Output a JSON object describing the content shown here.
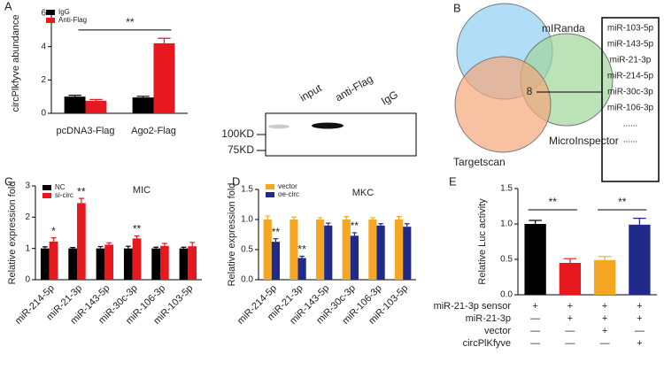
{
  "chart_data": [
    {
      "type": "bar",
      "panel": "A",
      "ylabel": "circPlkfyve  abundance",
      "categories": [
        "pcDNA3-Flag",
        "Ago2-Flag"
      ],
      "series": [
        {
          "name": "IgG",
          "color": "#000000",
          "values": [
            1.0,
            0.95
          ],
          "errors": [
            0.08,
            0.07
          ]
        },
        {
          "name": "Anti-Flag",
          "color": "#e8181f",
          "values": [
            0.75,
            4.2
          ],
          "errors": [
            0.08,
            0.3
          ]
        }
      ],
      "ylim": [
        0,
        6
      ],
      "yticks": [
        0,
        2,
        4,
        6
      ],
      "annotations": [
        "**"
      ]
    },
    {
      "type": "bar",
      "panel": "C",
      "title": "MIC",
      "ylabel": "Relative  expression fold",
      "categories": [
        "miR-214-5p",
        "miR-21-3p",
        "miR-143-5p",
        "miR-30c-3p",
        "miR-106-3p",
        "miR-103-5p"
      ],
      "series": [
        {
          "name": "NC",
          "color": "#000000",
          "values": [
            1.0,
            1.0,
            1.0,
            1.0,
            1.0,
            1.0
          ],
          "errors": [
            0.05,
            0.03,
            0.06,
            0.07,
            0.04,
            0.04
          ]
        },
        {
          "name": "si-circ",
          "color": "#e8181f",
          "values": [
            1.22,
            2.45,
            1.12,
            1.32,
            1.08,
            1.07
          ],
          "errors": [
            0.12,
            0.15,
            0.06,
            0.08,
            0.08,
            0.12
          ],
          "significance": [
            "*",
            "**",
            null,
            "**",
            null,
            null
          ]
        }
      ],
      "ylim": [
        0,
        3
      ],
      "yticks": [
        0,
        1,
        2,
        3
      ]
    },
    {
      "type": "bar",
      "panel": "D",
      "title": "MKC",
      "ylabel": "Relative  expression fold",
      "categories": [
        "miR-214-5p",
        "miR-21-3p",
        "miR-143-5p",
        "miR-30c-3p",
        "miR-106-3p",
        "miR-103-5p"
      ],
      "series": [
        {
          "name": "vector",
          "color": "#f5a623",
          "values": [
            1.0,
            1.0,
            1.0,
            1.0,
            1.0,
            1.0
          ],
          "errors": [
            0.06,
            0.04,
            0.03,
            0.05,
            0.03,
            0.05
          ]
        },
        {
          "name": "oe-circ",
          "color": "#1f2a8a",
          "values": [
            0.63,
            0.36,
            0.9,
            0.73,
            0.9,
            0.88
          ],
          "errors": [
            0.05,
            0.03,
            0.04,
            0.05,
            0.03,
            0.05
          ],
          "significance": [
            "**",
            "**",
            null,
            "**",
            null,
            null
          ]
        }
      ],
      "ylim": [
        0,
        1.5
      ],
      "yticks": [
        {
          "value": 0,
          "label": "0.0"
        },
        0.5,
        {
          "value": 1,
          "label": "1.0"
        },
        1.5
      ]
    },
    {
      "type": "bar",
      "panel": "E",
      "ylabel": "Relative Luc activity",
      "values": [
        1.0,
        0.45,
        0.49,
        0.99
      ],
      "errors": [
        0.05,
        0.06,
        0.05,
        0.09
      ],
      "colors": [
        "#000000",
        "#e8181f",
        "#f5a623",
        "#1f2a8a"
      ],
      "ylim": [
        0,
        1.5
      ],
      "yticks": [
        {
          "value": 0,
          "label": "0.0"
        },
        0.5,
        {
          "value": 1,
          "label": "1.0"
        },
        1.5
      ],
      "annotations": [
        "**",
        "**"
      ],
      "conditions": [
        {
          "label": "miR-21-3p sensor",
          "marks": [
            "+",
            "+",
            "+",
            "+"
          ]
        },
        {
          "label": "miR-21-3p",
          "marks": [
            "—",
            "+",
            "+",
            "+"
          ]
        },
        {
          "label": "vector",
          "marks": [
            "—",
            "—",
            "+",
            "—"
          ]
        },
        {
          "label": "circPlKfyve",
          "marks": [
            "—",
            "—",
            "—",
            "+"
          ]
        }
      ]
    }
  ],
  "blot": {
    "lanes": [
      "input",
      "anti-Flag",
      "IgG"
    ],
    "markers": [
      "100KD",
      "75KD"
    ]
  },
  "venn": {
    "panel": "B",
    "sets": [
      "mIRanda",
      "MicroInspector",
      "Targetscan"
    ],
    "overlap": 8,
    "mirnas": [
      "miR-103-5p",
      "miR-143-5p",
      "miR-21-3p",
      "miR-214-5p",
      "miR-30c-3p",
      "miR-106-3p",
      "......",
      "......"
    ]
  }
}
